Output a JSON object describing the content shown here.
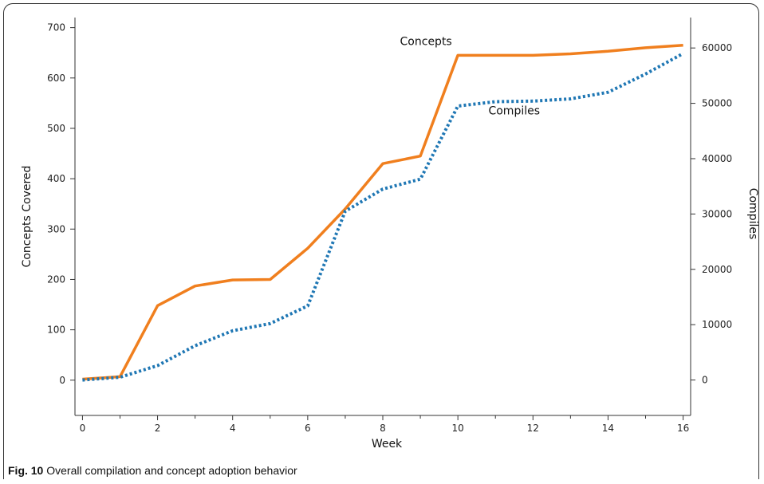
{
  "chart_data": {
    "type": "line",
    "xlabel": "Week",
    "ylabel": "Concepts Covered",
    "y2label": "Compiles",
    "x_ticks": [
      0,
      2,
      4,
      6,
      8,
      10,
      12,
      14,
      16
    ],
    "xlim": [
      -0.2,
      16.2
    ],
    "ylim": [
      -70,
      720
    ],
    "y_ticks": [
      0,
      100,
      200,
      300,
      400,
      500,
      600,
      700
    ],
    "y2lim": [
      -6400,
      65500
    ],
    "y2_ticks": [
      0,
      10000,
      20000,
      30000,
      40000,
      50000,
      60000
    ],
    "grid": false,
    "series": [
      {
        "name": "Concepts",
        "axis": "left",
        "color": "#F07F1E",
        "style": "solid",
        "x": [
          0,
          1,
          2,
          3,
          4,
          5,
          6,
          7,
          8,
          9,
          10,
          11,
          12,
          13,
          14,
          15,
          16
        ],
        "values": [
          2,
          7,
          148,
          187,
          199,
          200,
          262,
          340,
          430,
          445,
          645,
          645,
          645,
          648,
          653,
          660,
          665
        ]
      },
      {
        "name": "Compiles",
        "axis": "right",
        "color": "#1F77B4",
        "style": "dotted",
        "x": [
          0,
          1,
          2,
          3,
          4,
          5,
          6,
          7,
          8,
          9,
          10,
          11,
          12,
          13,
          14,
          15,
          16
        ],
        "values": [
          0,
          500,
          2600,
          6200,
          8900,
          10200,
          13400,
          30500,
          34500,
          36300,
          49500,
          50300,
          50400,
          50800,
          52000,
          55300,
          59000
        ]
      }
    ]
  },
  "caption": {
    "label": "Fig. 10",
    "text": " Overall compilation and concept adoption behavior"
  }
}
